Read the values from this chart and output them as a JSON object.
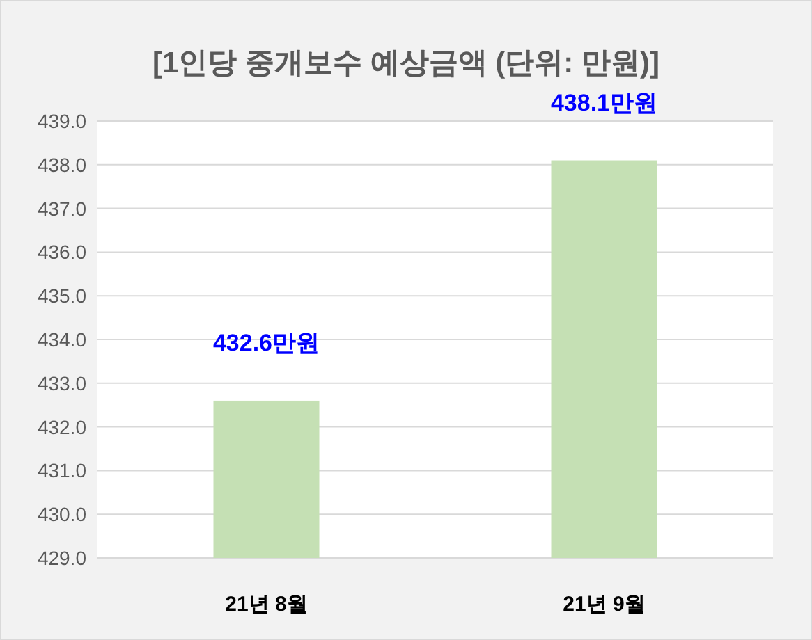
{
  "chart_data": {
    "type": "bar",
    "title": "[1인당 중개보수 예상금액 (단위: 만원)]",
    "categories": [
      "21년 8월",
      "21년 9월"
    ],
    "series": [
      {
        "color": "#c5e0b4",
        "values": [
          432.6,
          438.1
        ],
        "value_labels": [
          "432.6만원",
          "438.1만원"
        ]
      }
    ],
    "ylim": [
      429,
      439
    ],
    "yticks": [
      {
        "value": 429,
        "label": "429.0"
      },
      {
        "value": 430,
        "label": "430.0"
      },
      {
        "value": 431,
        "label": "431.0"
      },
      {
        "value": 432,
        "label": "432.0"
      },
      {
        "value": 433,
        "label": "433.0"
      },
      {
        "value": 434,
        "label": "434.0"
      },
      {
        "value": 435,
        "label": "435.0"
      },
      {
        "value": 436,
        "label": "436.0"
      },
      {
        "value": 437,
        "label": "437.0"
      },
      {
        "value": 438,
        "label": "438.0"
      },
      {
        "value": 439,
        "label": "439.0"
      }
    ],
    "grid": "y"
  }
}
